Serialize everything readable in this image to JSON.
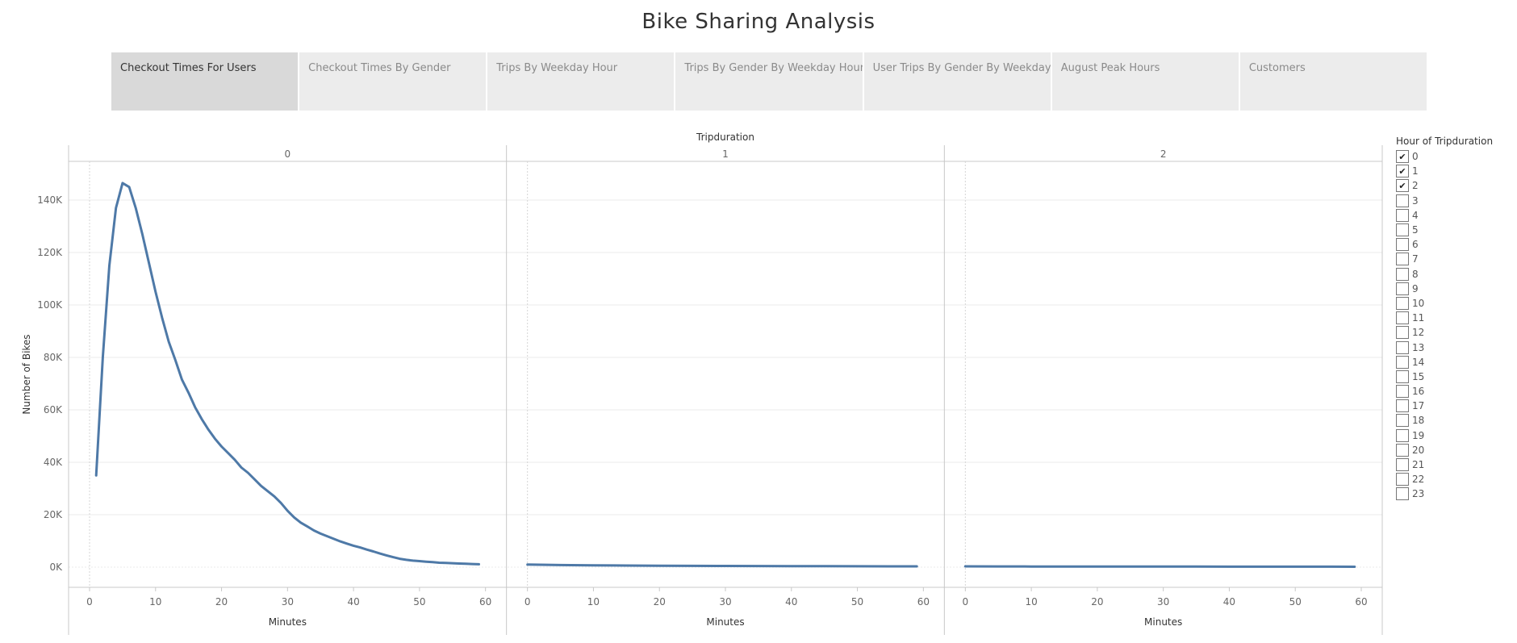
{
  "page": {
    "title": "Bike Sharing Analysis"
  },
  "tabs": [
    {
      "label": "Checkout Times For Users",
      "active": true
    },
    {
      "label": "Checkout Times By Gender",
      "active": false
    },
    {
      "label": "Trips By Weekday Hour",
      "active": false
    },
    {
      "label": "Trips By Gender By Weekday Hour",
      "active": false
    },
    {
      "label": "User Trips By Gender By Weekday",
      "active": false
    },
    {
      "label": "August Peak Hours",
      "active": false
    },
    {
      "label": "Customers",
      "active": false
    }
  ],
  "legend": {
    "title": "Hour of Tripduration",
    "check_glyph": "✔",
    "items": [
      {
        "label": "0",
        "checked": true
      },
      {
        "label": "1",
        "checked": true
      },
      {
        "label": "2",
        "checked": true
      },
      {
        "label": "3",
        "checked": false
      },
      {
        "label": "4",
        "checked": false
      },
      {
        "label": "5",
        "checked": false
      },
      {
        "label": "6",
        "checked": false
      },
      {
        "label": "7",
        "checked": false
      },
      {
        "label": "8",
        "checked": false
      },
      {
        "label": "9",
        "checked": false
      },
      {
        "label": "10",
        "checked": false
      },
      {
        "label": "11",
        "checked": false
      },
      {
        "label": "12",
        "checked": false
      },
      {
        "label": "13",
        "checked": false
      },
      {
        "label": "14",
        "checked": false
      },
      {
        "label": "15",
        "checked": false
      },
      {
        "label": "16",
        "checked": false
      },
      {
        "label": "17",
        "checked": false
      },
      {
        "label": "18",
        "checked": false
      },
      {
        "label": "19",
        "checked": false
      },
      {
        "label": "20",
        "checked": false
      },
      {
        "label": "21",
        "checked": false
      },
      {
        "label": "22",
        "checked": false
      },
      {
        "label": "23",
        "checked": false
      }
    ]
  },
  "chart_data": {
    "type": "line",
    "title": "",
    "facet_label": "Tripduration",
    "ylabel": "Number of Bikes",
    "xlabel": "Minutes",
    "ylim": [
      0,
      150000
    ],
    "xlim": [
      0,
      60
    ],
    "y_ticks": [
      0,
      20000,
      40000,
      60000,
      80000,
      100000,
      120000,
      140000
    ],
    "y_tick_labels": [
      "0K",
      "20K",
      "40K",
      "60K",
      "80K",
      "100K",
      "120K",
      "140K"
    ],
    "x_ticks": [
      0,
      10,
      20,
      30,
      40,
      50,
      60
    ],
    "x_tick_labels": [
      "0",
      "10",
      "20",
      "30",
      "40",
      "50",
      "60"
    ],
    "grid": true,
    "color": "#4e79a7",
    "panels": [
      {
        "label": "0",
        "points": [
          [
            1,
            35000
          ],
          [
            2,
            80000
          ],
          [
            3,
            115000
          ],
          [
            4,
            137000
          ],
          [
            5,
            146500
          ],
          [
            6,
            145000
          ],
          [
            7,
            137000
          ],
          [
            8,
            127000
          ],
          [
            9,
            116000
          ],
          [
            10,
            105000
          ],
          [
            11,
            95000
          ],
          [
            12,
            86000
          ],
          [
            13,
            79000
          ],
          [
            14,
            71500
          ],
          [
            15,
            66500
          ],
          [
            16,
            61000
          ],
          [
            17,
            56500
          ],
          [
            18,
            52500
          ],
          [
            19,
            49000
          ],
          [
            20,
            46000
          ],
          [
            21,
            43500
          ],
          [
            22,
            41000
          ],
          [
            23,
            38000
          ],
          [
            24,
            36000
          ],
          [
            25,
            33500
          ],
          [
            26,
            31000
          ],
          [
            27,
            29000
          ],
          [
            28,
            27000
          ],
          [
            29,
            24500
          ],
          [
            30,
            21500
          ],
          [
            31,
            19000
          ],
          [
            32,
            17000
          ],
          [
            33,
            15500
          ],
          [
            34,
            14000
          ],
          [
            35,
            12800
          ],
          [
            36,
            11800
          ],
          [
            37,
            10800
          ],
          [
            38,
            9800
          ],
          [
            39,
            9000
          ],
          [
            40,
            8200
          ],
          [
            41,
            7500
          ],
          [
            42,
            6700
          ],
          [
            43,
            6000
          ],
          [
            44,
            5200
          ],
          [
            45,
            4500
          ],
          [
            46,
            3800
          ],
          [
            47,
            3200
          ],
          [
            48,
            2800
          ],
          [
            49,
            2500
          ],
          [
            50,
            2300
          ],
          [
            51,
            2100
          ],
          [
            52,
            1900
          ],
          [
            53,
            1700
          ],
          [
            54,
            1600
          ],
          [
            55,
            1500
          ],
          [
            56,
            1400
          ],
          [
            57,
            1300
          ],
          [
            58,
            1200
          ],
          [
            59,
            1100
          ]
        ]
      },
      {
        "label": "1",
        "points": [
          [
            0,
            1000
          ],
          [
            5,
            800
          ],
          [
            10,
            700
          ],
          [
            15,
            600
          ],
          [
            20,
            550
          ],
          [
            25,
            500
          ],
          [
            30,
            450
          ],
          [
            35,
            420
          ],
          [
            40,
            400
          ],
          [
            45,
            380
          ],
          [
            50,
            350
          ],
          [
            55,
            320
          ],
          [
            59,
            300
          ]
        ]
      },
      {
        "label": "2",
        "points": [
          [
            0,
            300
          ],
          [
            5,
            280
          ],
          [
            10,
            260
          ],
          [
            15,
            250
          ],
          [
            20,
            240
          ],
          [
            25,
            230
          ],
          [
            30,
            220
          ],
          [
            35,
            210
          ],
          [
            40,
            200
          ],
          [
            45,
            190
          ],
          [
            50,
            180
          ],
          [
            55,
            170
          ],
          [
            59,
            160
          ]
        ]
      }
    ]
  }
}
